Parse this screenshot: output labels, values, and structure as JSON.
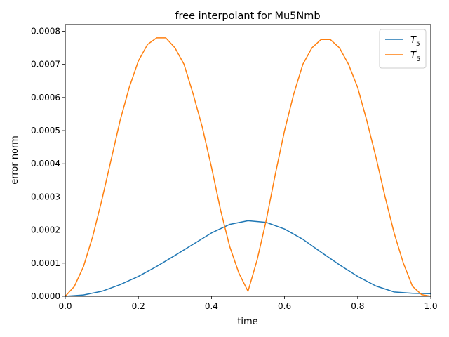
{
  "chart_data": {
    "type": "line",
    "title": "free interpolant for Mu5Nmb",
    "xlabel": "time",
    "ylabel": "error norm",
    "xlim": [
      0,
      1
    ],
    "ylim": [
      0,
      0.00082
    ],
    "xticks": [
      0.0,
      0.2,
      0.4,
      0.6,
      0.8,
      1.0
    ],
    "xtick_labels": [
      "0.0",
      "0.2",
      "0.4",
      "0.6",
      "0.8",
      "1.0"
    ],
    "yticks": [
      0,
      0.0001,
      0.0002,
      0.0003,
      0.0004,
      0.0005,
      0.0006,
      0.0007,
      0.0008
    ],
    "ytick_labels": [
      "0.0000",
      "0.0001",
      "0.0002",
      "0.0003",
      "0.0004",
      "0.0005",
      "0.0006",
      "0.0007",
      "0.0008"
    ],
    "grid": false,
    "legend_position": "top-right",
    "series": [
      {
        "name": "T",
        "name_sub": "5",
        "name_sup": "",
        "color": "#1f77b4",
        "x": [
          0,
          0.05,
          0.1,
          0.15,
          0.2,
          0.25,
          0.3,
          0.35,
          0.4,
          0.45,
          0.5,
          0.55,
          0.6,
          0.65,
          0.7,
          0.75,
          0.8,
          0.85,
          0.9,
          0.95,
          1.0
        ],
        "y": [
          0,
          4e-06,
          1.5e-05,
          3.5e-05,
          6e-05,
          9e-05,
          0.000123,
          0.000157,
          0.000191,
          0.000217,
          0.000228,
          0.000223,
          0.000203,
          0.000172,
          0.000133,
          9.5e-05,
          6e-05,
          3.1e-05,
          1.3e-05,
          9e-06,
          8e-06
        ]
      },
      {
        "name": "T",
        "name_sub": "5",
        "name_sup": "'",
        "color": "#ff7f0e",
        "x": [
          0,
          0.025,
          0.05,
          0.075,
          0.1,
          0.125,
          0.15,
          0.175,
          0.2,
          0.225,
          0.25,
          0.275,
          0.3,
          0.325,
          0.35,
          0.375,
          0.4,
          0.425,
          0.45,
          0.475,
          0.5,
          0.525,
          0.55,
          0.575,
          0.6,
          0.625,
          0.65,
          0.675,
          0.7,
          0.725,
          0.75,
          0.775,
          0.8,
          0.825,
          0.85,
          0.875,
          0.9,
          0.925,
          0.95,
          0.975,
          1.0
        ],
        "y": [
          0,
          3e-05,
          9e-05,
          0.00018,
          0.00029,
          0.00041,
          0.00053,
          0.00063,
          0.00071,
          0.00076,
          0.00078,
          0.00078,
          0.00075,
          0.0007,
          0.00061,
          0.00051,
          0.00039,
          0.00026,
          0.00015,
          7e-05,
          1.5e-05,
          0.00011,
          0.00023,
          0.00037,
          0.0005,
          0.00061,
          0.0007,
          0.00075,
          0.000775,
          0.000775,
          0.00075,
          0.0007,
          0.00063,
          0.00053,
          0.00042,
          0.0003,
          0.00019,
          0.0001,
          3e-05,
          5e-06,
          0
        ]
      }
    ]
  }
}
